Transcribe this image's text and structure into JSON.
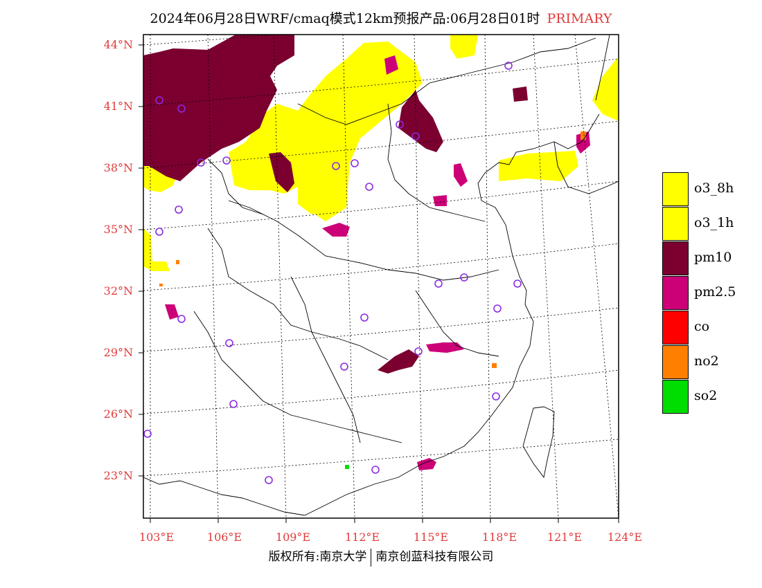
{
  "header": {
    "title": "2024年06月28日WRF/cmaq模式12km预报产品:06月28日01时",
    "tag": "PRIMARY"
  },
  "map": {
    "lat_labels": [
      "44°N",
      "41°N",
      "38°N",
      "35°N",
      "32°N",
      "29°N",
      "26°N",
      "23°N"
    ],
    "lon_labels": [
      "103°E",
      "106°E",
      "109°E",
      "112°E",
      "115°E",
      "118°E",
      "121°E",
      "124°E"
    ],
    "label_color": "#e03a3a"
  },
  "legend": {
    "items": [
      {
        "label": "o3_8h",
        "color": "#ffff00"
      },
      {
        "label": "o3_1h",
        "color": "#ffff00"
      },
      {
        "label": "pm10",
        "color": "#7b0030"
      },
      {
        "label": "pm2.5",
        "color": "#cc0077"
      },
      {
        "label": "co",
        "color": "#ff0000"
      },
      {
        "label": "no2",
        "color": "#ff7f00"
      },
      {
        "label": "so2",
        "color": "#00dd00"
      }
    ]
  },
  "footer": {
    "left": "版权所有:南京大学",
    "right": "南京创蓝科技有限公司"
  }
}
